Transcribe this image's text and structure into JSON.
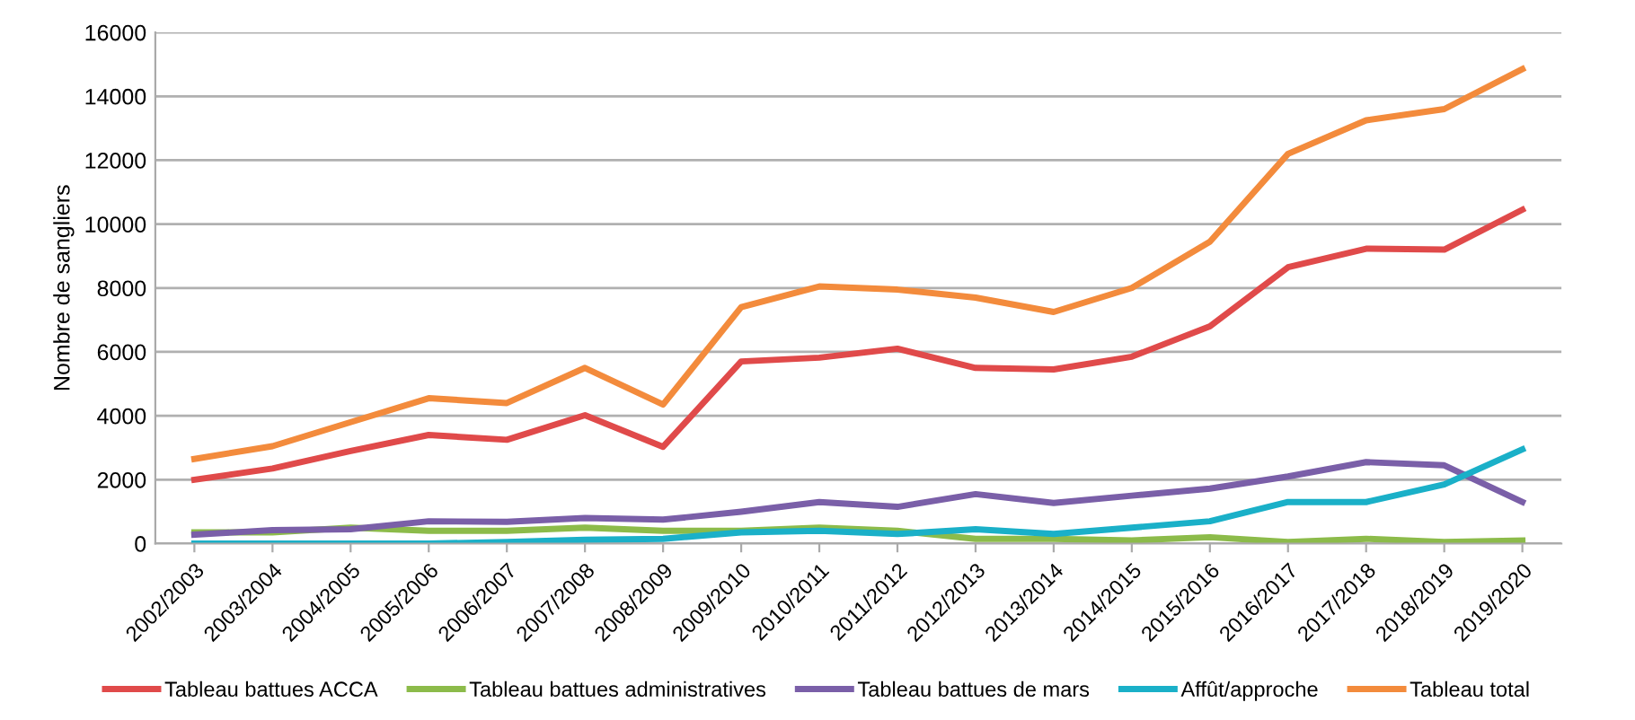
{
  "chart_data": {
    "type": "line",
    "ylabel": "Nombre de sangliers",
    "categories": [
      "2002/2003",
      "2003/2004",
      "2004/2005",
      "2005/2006",
      "2006/2007",
      "2007/2008",
      "2008/2009",
      "2009/2010",
      "2010/2011",
      "2011/2012",
      "2012/2013",
      "2013/2014",
      "2014/2015",
      "2015/2016",
      "2016/2017",
      "2017/2018",
      "2018/2019",
      "2019/2020"
    ],
    "series": [
      {
        "name": "Tableau battues ACCA",
        "color": "#e04a4a",
        "values": [
          2000,
          2350,
          2900,
          3400,
          3250,
          4020,
          3030,
          5700,
          5820,
          6100,
          5500,
          5450,
          5850,
          6800,
          8650,
          9230,
          9200,
          10450
        ]
      },
      {
        "name": "Tableau battues administratives",
        "color": "#8cbb4a",
        "values": [
          350,
          350,
          500,
          400,
          400,
          500,
          400,
          400,
          500,
          400,
          150,
          150,
          100,
          200,
          50,
          150,
          50,
          100
        ]
      },
      {
        "name": "Tableau battues de mars",
        "color": "#7a5fa8",
        "values": [
          280,
          420,
          450,
          700,
          680,
          800,
          750,
          1000,
          1300,
          1150,
          1550,
          1270,
          1500,
          1720,
          2100,
          2550,
          2450,
          1300
        ]
      },
      {
        "name": "Affût/approche",
        "color": "#1ab0c8",
        "values": [
          0,
          0,
          0,
          0,
          50,
          120,
          150,
          350,
          400,
          300,
          450,
          300,
          500,
          700,
          1300,
          1300,
          1850,
          2950
        ]
      },
      {
        "name": "Tableau total",
        "color": "#f38b3c",
        "values": [
          2650,
          3050,
          3800,
          4550,
          4400,
          5500,
          4350,
          7400,
          8050,
          7950,
          7700,
          7250,
          8000,
          9450,
          12200,
          13250,
          13600,
          14850
        ]
      }
    ],
    "ylim": [
      0,
      16000
    ],
    "yticks": [
      0,
      2000,
      4000,
      6000,
      8000,
      10000,
      12000,
      14000,
      16000
    ],
    "grid": "y",
    "legend": "bottom",
    "marker": "none",
    "line_style": "solid"
  }
}
